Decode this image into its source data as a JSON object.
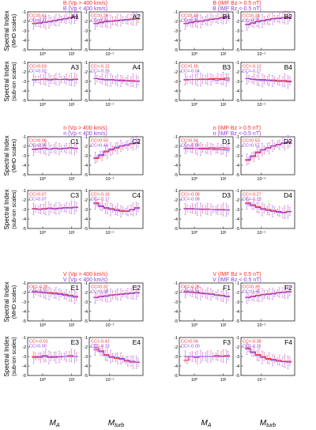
{
  "colors": {
    "red": "#ff2a2a",
    "purple": "#8b3fd9",
    "pink": "#e87ac8",
    "lavender": "#b98ce6",
    "axis": "#222222"
  },
  "groups": [
    {
      "legends": [
        [
          "B (Vp > 400 km/s)",
          "B (Vp < 400 km/s)"
        ],
        [
          "B (IMF Bz > 0.5 nT)",
          "B (IMF Bz <-0.5 nT)"
        ]
      ]
    },
    {
      "legends": [
        [
          "n (Vp > 400 km/s)",
          "n (Vp < 400 km/s)"
        ],
        [
          "n (IMF Bz > 0.5 nT)",
          "n (IMF Bz <-0.5 nT)"
        ]
      ]
    },
    {
      "legends": [
        [
          "V (Vp > 400 km/s)",
          "V (Vp < 400 km/s)"
        ],
        [
          "V (IMF Bz > 0.5 nT)",
          "V (IMF Bz <-0.5 nT)"
        ]
      ]
    }
  ],
  "labels": {
    "ylabel_line1": "Spectral Index",
    "ylabel_mhd": "(MHD scales)",
    "ylabel_ion": "(sub-ion scales)",
    "xlabel_ma": "M",
    "xlabel_ma_sub": "A",
    "xlabel_mt": "M",
    "xlabel_mt_sub": "turb"
  },
  "chart_data": [
    {
      "id": "A1",
      "type": "line",
      "ylim": [
        -5,
        -1
      ],
      "yticks": [
        "-1",
        "-2",
        "-3",
        "-4",
        "-5"
      ],
      "xticks": [
        "10⁰",
        "10¹"
      ],
      "cc_red": "CC=0.41",
      "cc_purple": "CC=0.37",
      "series": [
        {
          "values": [
            -2.2,
            -2.15,
            -2.1,
            -2.0,
            -1.9,
            -1.8,
            -1.7,
            -1.6,
            -1.5
          ]
        },
        {
          "values": [
            -2.25,
            -2.2,
            -2.1,
            -2.05,
            -1.95,
            -1.85,
            -1.75,
            -1.65,
            -1.55
          ]
        }
      ]
    },
    {
      "id": "A2",
      "type": "line",
      "ylim": [
        -5,
        -1
      ],
      "yticks": [
        "-1",
        "-2",
        "-3",
        "-4",
        "-5"
      ],
      "xticks": [
        "10⁻¹"
      ],
      "cc_red": "CC=0.26",
      "cc_purple": "CC=0.24",
      "series": [
        {
          "values": [
            -2.2,
            -2.1,
            -2.0,
            -1.95,
            -1.9,
            -1.85,
            -1.8,
            -1.75,
            -1.7
          ]
        },
        {
          "values": [
            -2.25,
            -2.15,
            -2.05,
            -2.0,
            -1.95,
            -1.9,
            -1.85,
            -1.8,
            -1.75
          ]
        }
      ]
    },
    {
      "id": "B1",
      "type": "line",
      "ylim": [
        -5,
        -1
      ],
      "yticks": [
        "-1",
        "-2",
        "-3",
        "-4",
        "-5"
      ],
      "xticks": [
        "10⁰",
        "10¹"
      ],
      "cc_red": "CC=0.40",
      "cc_purple": "CC=0.39",
      "series": [
        {
          "values": [
            -2.2,
            -2.1,
            -2.0,
            -1.95,
            -1.85,
            -1.75,
            -1.7,
            -1.6,
            -1.5
          ]
        },
        {
          "values": [
            -2.25,
            -2.15,
            -2.05,
            -2.0,
            -1.9,
            -1.8,
            -1.75,
            -1.65,
            -1.55
          ]
        }
      ]
    },
    {
      "id": "B2",
      "type": "line",
      "ylim": [
        -5,
        -1
      ],
      "yticks": [
        "-1",
        "-2",
        "-3",
        "-4",
        "-5"
      ],
      "xticks": [
        "10⁻¹"
      ],
      "cc_red": "CC=0.31",
      "cc_purple": "CC=0.26",
      "series": [
        {
          "values": [
            -2.3,
            -2.15,
            -2.0,
            -1.9,
            -1.8,
            -1.7,
            -1.65,
            -1.6,
            -1.55
          ]
        },
        {
          "values": [
            -2.35,
            -2.2,
            -2.05,
            -1.95,
            -1.85,
            -1.75,
            -1.7,
            -1.65,
            -1.6
          ]
        }
      ]
    },
    {
      "id": "A3",
      "type": "line",
      "ylim": [
        -5,
        -1
      ],
      "yticks": [
        "-1",
        "-2",
        "-3",
        "-4",
        "-5"
      ],
      "xticks": [
        "10⁰",
        "10¹"
      ],
      "cc_red": "CC=0.03",
      "cc_purple": "CC=0.02",
      "series": [
        {
          "values": [
            -2.8,
            -2.8,
            -2.75,
            -2.8,
            -2.75,
            -2.8,
            -2.75,
            -2.8,
            -2.75
          ]
        },
        {
          "values": [
            -2.85,
            -2.8,
            -2.8,
            -2.85,
            -2.8,
            -2.8,
            -2.8,
            -2.85,
            -2.8
          ]
        }
      ]
    },
    {
      "id": "A4",
      "type": "line",
      "ylim": [
        -5,
        -1
      ],
      "yticks": [
        "-1",
        "-2",
        "-3",
        "-4",
        "-5"
      ],
      "xticks": [
        "10⁻¹"
      ],
      "cc_red": "CC=-0.12",
      "cc_purple": "CC=-0.26",
      "series": [
        {
          "values": [
            -2.7,
            -2.75,
            -2.8,
            -2.8,
            -2.85,
            -2.85,
            -2.9,
            -2.9,
            -2.95
          ]
        },
        {
          "values": [
            -2.7,
            -2.8,
            -2.85,
            -2.85,
            -2.9,
            -2.95,
            -2.95,
            -3.0,
            -3.0
          ]
        }
      ]
    },
    {
      "id": "B3",
      "type": "line",
      "ylim": [
        -5,
        -1
      ],
      "yticks": [
        "-1",
        "-2",
        "-3",
        "-4",
        "-5"
      ],
      "xticks": [
        "10⁰",
        "10¹"
      ],
      "cc_red": "CC=0.16",
      "cc_purple": "CC=-0.04",
      "series": [
        {
          "values": [
            -2.85,
            -2.8,
            -2.8,
            -2.75,
            -2.75,
            -2.7,
            -2.7,
            -2.7,
            -2.65
          ]
        },
        {
          "values": [
            -2.8,
            -2.8,
            -2.8,
            -2.8,
            -2.8,
            -2.8,
            -2.85,
            -2.8,
            -2.85
          ]
        }
      ]
    },
    {
      "id": "B4",
      "type": "line",
      "ylim": [
        -5,
        -1
      ],
      "yticks": [
        "-1",
        "-2",
        "-3",
        "-4",
        "-5"
      ],
      "xticks": [
        "10⁻¹"
      ],
      "cc_red": "CC=-0.12",
      "cc_purple": "CC=-0.27",
      "series": [
        {
          "values": [
            -2.7,
            -2.75,
            -2.8,
            -2.8,
            -2.85,
            -2.85,
            -2.9,
            -2.9,
            -2.95
          ]
        },
        {
          "values": [
            -2.7,
            -2.8,
            -2.85,
            -2.9,
            -2.9,
            -2.95,
            -3.0,
            -3.0,
            -3.05
          ]
        }
      ]
    },
    {
      "id": "C1",
      "type": "line",
      "ylim": [
        -5,
        -1
      ],
      "yticks": [
        "-1",
        "-2",
        "-3",
        "-4",
        "-5"
      ],
      "xticks": [
        "10⁰",
        "10¹"
      ],
      "cc_red": "CC=0.06",
      "cc_purple": "CC=0.06",
      "series": [
        {
          "values": [
            -2.3,
            -2.25,
            -2.2,
            -2.3,
            -2.2,
            -2.25,
            -2.2,
            -2.15,
            -2.2
          ]
        },
        {
          "values": [
            -2.35,
            -2.3,
            -2.25,
            -2.3,
            -2.25,
            -2.3,
            -2.25,
            -2.2,
            -2.25
          ]
        }
      ]
    },
    {
      "id": "C2",
      "type": "line",
      "ylim": [
        -5,
        -1
      ],
      "yticks": [
        "-1",
        "-2",
        "-3",
        "-4",
        "-5"
      ],
      "xticks": [
        "10⁻¹"
      ],
      "cc_red": "CC=0.50",
      "cc_purple": "CC=0.49",
      "series": [
        {
          "values": [
            -3.3,
            -3.0,
            -2.6,
            -2.4,
            -2.2,
            -2.0,
            -1.9,
            -1.75,
            -1.65
          ]
        },
        {
          "values": [
            -3.2,
            -2.9,
            -2.5,
            -2.3,
            -2.1,
            -1.95,
            -1.85,
            -1.7,
            -1.6
          ]
        }
      ]
    },
    {
      "id": "D1",
      "type": "line",
      "ylim": [
        -5,
        -1
      ],
      "yticks": [
        "-1",
        "-2",
        "-3",
        "-4",
        "-5"
      ],
      "xticks": [
        "10⁰",
        "10¹"
      ],
      "cc_red": "CC=0.04",
      "cc_purple": "CC=-0.09",
      "series": [
        {
          "values": [
            -2.25,
            -2.2,
            -2.25,
            -2.2,
            -2.2,
            -2.15,
            -2.2,
            -2.15,
            -2.2
          ]
        },
        {
          "values": [
            -2.2,
            -2.25,
            -2.25,
            -2.3,
            -2.3,
            -2.3,
            -2.35,
            -2.35,
            -2.4
          ]
        }
      ]
    },
    {
      "id": "D2",
      "type": "line",
      "ylim": [
        -5,
        -1
      ],
      "yticks": [
        "-1",
        "-2",
        "-3",
        "-4",
        "-5"
      ],
      "xticks": [
        "10⁻¹"
      ],
      "cc_red": "CC=0.53",
      "cc_purple": "CC=0.57",
      "series": [
        {
          "values": [
            -3.5,
            -3.1,
            -2.7,
            -2.4,
            -2.2,
            -2.0,
            -1.85,
            -1.7,
            -1.6
          ]
        },
        {
          "values": [
            -3.4,
            -3.0,
            -2.6,
            -2.35,
            -2.15,
            -1.95,
            -1.8,
            -1.65,
            -1.55
          ]
        }
      ]
    },
    {
      "id": "C3",
      "type": "line",
      "ylim": [
        -5,
        -1
      ],
      "yticks": [
        "-1",
        "-2",
        "-3",
        "-4",
        "-5"
      ],
      "xticks": [
        "10⁰",
        "10¹"
      ],
      "cc_red": "CC=0.07",
      "cc_purple": "CC=0.07",
      "series": [
        {
          "values": [
            -2.9,
            -2.95,
            -2.9,
            -2.85,
            -2.9,
            -2.85,
            -2.8,
            -2.8,
            -2.75
          ]
        },
        {
          "values": [
            -2.95,
            -3.0,
            -2.95,
            -2.9,
            -2.95,
            -2.9,
            -2.85,
            -2.85,
            -2.8
          ]
        }
      ]
    },
    {
      "id": "C4",
      "type": "line",
      "ylim": [
        -5,
        -1
      ],
      "yticks": [
        "-1",
        "-2",
        "-3",
        "-4",
        "-5"
      ],
      "xticks": [
        "10⁻¹"
      ],
      "cc_red": "CC=-0.16",
      "cc_purple": "CC=-0.17",
      "series": [
        {
          "values": [
            -2.3,
            -2.6,
            -2.8,
            -2.9,
            -3.0,
            -3.1,
            -3.15,
            -3.0,
            -2.8
          ]
        },
        {
          "values": [
            -2.4,
            -2.7,
            -2.9,
            -3.0,
            -3.1,
            -3.2,
            -3.2,
            -3.05,
            -2.9
          ]
        }
      ]
    },
    {
      "id": "D3",
      "type": "line",
      "ylim": [
        -5,
        -1
      ],
      "yticks": [
        "-1",
        "-2",
        "-3",
        "-4",
        "-5"
      ],
      "xticks": [
        "10⁰",
        "10¹"
      ],
      "cc_red": "CC=-0.08",
      "cc_purple": "CC=-0.08",
      "series": [
        {
          "values": [
            -2.9,
            -2.9,
            -2.95,
            -2.95,
            -2.95,
            -3.0,
            -3.0,
            -3.0,
            -3.05
          ]
        },
        {
          "values": [
            -2.95,
            -2.95,
            -2.95,
            -3.0,
            -3.0,
            -3.0,
            -3.05,
            -3.05,
            -3.05
          ]
        }
      ]
    },
    {
      "id": "D4",
      "type": "line",
      "ylim": [
        -5,
        -1
      ],
      "yticks": [
        "-1",
        "-2",
        "-3",
        "-4",
        "-5"
      ],
      "xticks": [
        "10⁻¹"
      ],
      "cc_red": "CC=-0.27",
      "cc_purple": "CC=-0.29",
      "series": [
        {
          "values": [
            -2.3,
            -2.5,
            -2.7,
            -2.9,
            -3.0,
            -3.1,
            -3.2,
            -3.3,
            -3.2
          ]
        },
        {
          "values": [
            -2.4,
            -2.6,
            -2.8,
            -3.0,
            -3.1,
            -3.2,
            -3.3,
            -3.35,
            -3.25
          ]
        }
      ]
    },
    {
      "id": "E1",
      "type": "line",
      "ylim": [
        -5,
        -1
      ],
      "yticks": [
        "-1",
        "-2",
        "-3",
        "-4",
        "-5"
      ],
      "xticks": [
        "10⁰",
        "10¹"
      ],
      "cc_red": "CC=-0.21",
      "cc_purple": "CC=-0.27",
      "series": [
        {
          "values": [
            -1.9,
            -1.95,
            -2.0,
            -2.0,
            -2.05,
            -2.1,
            -2.2,
            -2.3,
            -2.4
          ]
        },
        {
          "values": [
            -1.95,
            -2.0,
            -2.05,
            -2.1,
            -2.15,
            -2.2,
            -2.3,
            -2.4,
            -2.5
          ]
        }
      ]
    },
    {
      "id": "E2",
      "type": "line",
      "ylim": [
        -5,
        -1
      ],
      "yticks": [
        "-1",
        "-2",
        "-3",
        "-4",
        "-5"
      ],
      "xticks": [
        "10⁻¹"
      ],
      "cc_red": "CC=0.32",
      "cc_purple": "CC=0.28",
      "series": [
        {
          "values": [
            -2.5,
            -2.4,
            -2.35,
            -2.25,
            -2.2,
            -2.15,
            -2.1,
            -2.05,
            -2.0
          ]
        },
        {
          "values": [
            -2.55,
            -2.45,
            -2.4,
            -2.3,
            -2.25,
            -2.2,
            -2.15,
            -2.1,
            -2.05
          ]
        }
      ]
    },
    {
      "id": "F1",
      "type": "line",
      "ylim": [
        -5,
        -1
      ],
      "yticks": [
        "-1",
        "-2",
        "-3",
        "-4",
        "-5"
      ],
      "xticks": [
        "10⁰",
        "10¹"
      ],
      "cc_red": "CC=-0.25",
      "cc_purple": "CC=-0.24",
      "series": [
        {
          "values": [
            -1.9,
            -1.95,
            -2.0,
            -2.05,
            -2.1,
            -2.15,
            -2.25,
            -2.3,
            -2.4
          ]
        },
        {
          "values": [
            -1.95,
            -2.0,
            -2.05,
            -2.1,
            -2.15,
            -2.2,
            -2.3,
            -2.35,
            -2.45
          ]
        }
      ]
    },
    {
      "id": "F2",
      "type": "line",
      "ylim": [
        -5,
        -1
      ],
      "yticks": [
        "-1",
        "-2",
        "-3",
        "-4",
        "-5"
      ],
      "xticks": [
        "10⁻¹"
      ],
      "cc_red": "CC=0.39",
      "cc_purple": "CC=0.35",
      "series": [
        {
          "values": [
            -2.5,
            -2.4,
            -2.3,
            -2.2,
            -2.15,
            -2.1,
            -2.0,
            -1.95,
            -1.9
          ]
        },
        {
          "values": [
            -2.55,
            -2.45,
            -2.35,
            -2.25,
            -2.2,
            -2.15,
            -2.05,
            -2.0,
            -1.95
          ]
        }
      ]
    },
    {
      "id": "E3",
      "type": "line",
      "ylim": [
        -5,
        -1
      ],
      "yticks": [
        "-1",
        "-2",
        "-3",
        "-4",
        "-5"
      ],
      "xticks": [
        "10⁰",
        "10¹"
      ],
      "cc_red": "CC=-0.01",
      "cc_purple": "CC=0.00",
      "series": [
        {
          "values": [
            -3.0,
            -3.1,
            -2.9,
            -3.0,
            -3.1,
            -3.0,
            -3.0,
            -2.9,
            -3.0
          ]
        },
        {
          "values": [
            -3.1,
            -3.0,
            -3.0,
            -3.1,
            -3.0,
            -3.05,
            -3.0,
            -3.0,
            -3.0
          ]
        }
      ]
    },
    {
      "id": "E4",
      "type": "line",
      "ylim": [
        -5,
        -1
      ],
      "yticks": [
        "-1",
        "-2",
        "-3",
        "-4",
        "-5"
      ],
      "xticks": [
        "10⁻¹"
      ],
      "cc_red": "CC=-0.42",
      "cc_purple": "CC=-0.33",
      "series": [
        {
          "values": [
            -2.1,
            -2.4,
            -2.8,
            -3.1,
            -3.2,
            -3.3,
            -3.5,
            -3.6,
            -3.6
          ]
        },
        {
          "values": [
            -2.3,
            -2.5,
            -2.9,
            -3.0,
            -3.1,
            -3.2,
            -3.4,
            -3.5,
            -3.6
          ]
        }
      ]
    },
    {
      "id": "F3",
      "type": "line",
      "ylim": [
        -5,
        -1
      ],
      "yticks": [
        "-1",
        "-2",
        "-3",
        "-4",
        "-5"
      ],
      "xticks": [
        "10⁰",
        "10¹"
      ],
      "cc_red": "CC=0.04",
      "cc_purple": "CC=-0.00",
      "series": [
        {
          "values": [
            -3.4,
            -3.0,
            -3.1,
            -3.0,
            -3.0,
            -3.0,
            -2.9,
            -2.95,
            -2.9
          ]
        },
        {
          "values": [
            -3.0,
            -3.0,
            -3.05,
            -3.0,
            -3.0,
            -3.0,
            -3.0,
            -3.0,
            -3.0
          ]
        }
      ]
    },
    {
      "id": "F4",
      "type": "line",
      "ylim": [
        -5,
        -1
      ],
      "yticks": [
        "-1",
        "-2",
        "-3",
        "-4",
        "-5"
      ],
      "xticks": [
        "10⁻¹"
      ],
      "cc_red": "CC=-0.38",
      "cc_purple": "CC=-0.35",
      "series": [
        {
          "values": [
            -2.1,
            -2.5,
            -2.8,
            -3.0,
            -3.2,
            -3.3,
            -3.4,
            -3.5,
            -3.5
          ]
        },
        {
          "values": [
            -2.2,
            -2.6,
            -2.9,
            -3.1,
            -3.3,
            -3.4,
            -3.5,
            -3.55,
            -3.6
          ]
        }
      ]
    }
  ]
}
